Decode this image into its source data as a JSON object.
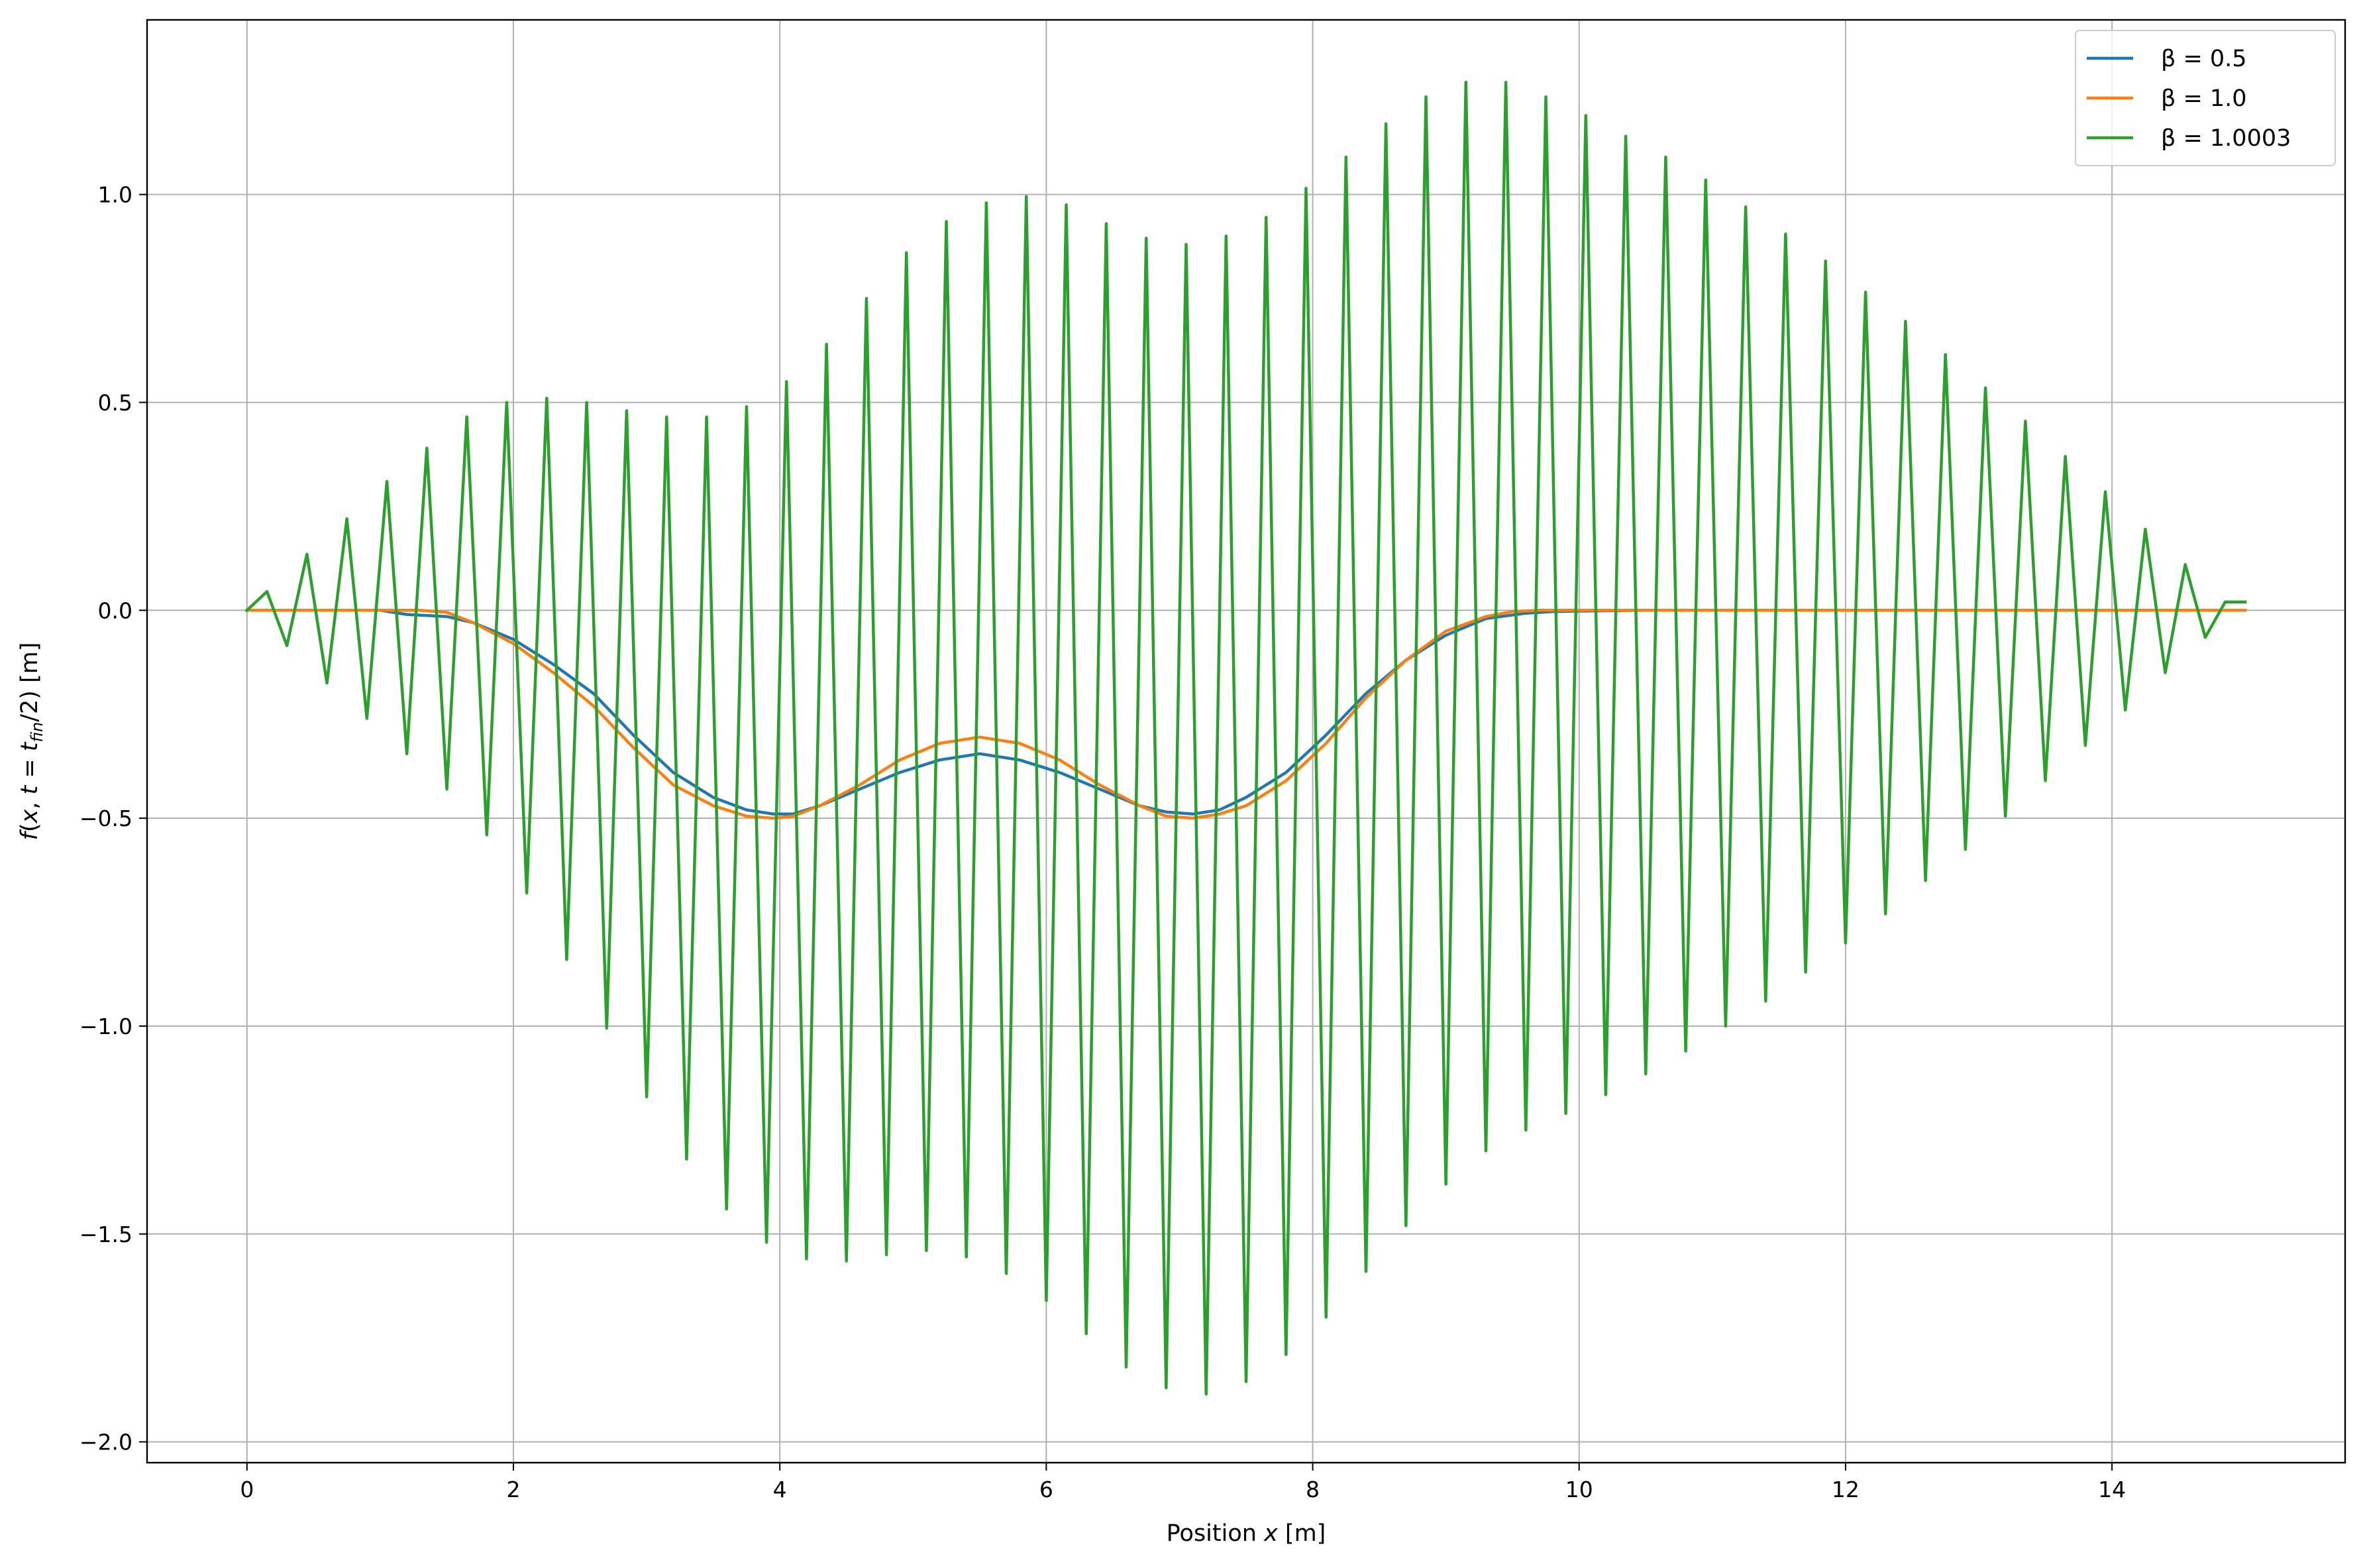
{
  "chart_data": {
    "type": "line",
    "title": "",
    "xlabel": {
      "prefix": "Position ",
      "var": "x",
      "suffix": " [m]"
    },
    "ylabel": {
      "f": "f",
      "open": "(",
      "x": "x",
      "comma": ", ",
      "t": "t",
      "eq": " = ",
      "t2": "t",
      "sub": "fin",
      "tail": "/2) [m]"
    },
    "xlim": [
      -0.75,
      15.75
    ],
    "ylim": [
      -2.05,
      1.42
    ],
    "xticks": [
      0,
      2,
      4,
      6,
      8,
      10,
      12,
      14
    ],
    "xtick_labels": [
      "0",
      "2",
      "4",
      "6",
      "8",
      "10",
      "12",
      "14"
    ],
    "yticks": [
      1.0,
      0.5,
      0.0,
      -0.5,
      -1.0,
      -1.5,
      -2.0
    ],
    "ytick_labels": [
      "1.0",
      "0.5",
      "0.0",
      "−0.5",
      "−1.0",
      "−1.5",
      "−2.0"
    ],
    "grid": true,
    "legend_position": "top-right",
    "series": [
      {
        "name": "β = 0.5",
        "color": "#1f77b4",
        "x": [
          0.0,
          0.5,
          1.0,
          1.2,
          1.5,
          1.7,
          2.0,
          2.3,
          2.6,
          2.9,
          3.2,
          3.5,
          3.75,
          3.95,
          4.1,
          4.3,
          4.6,
          4.9,
          5.2,
          5.5,
          5.8,
          6.1,
          6.4,
          6.7,
          6.9,
          7.1,
          7.3,
          7.5,
          7.8,
          8.1,
          8.4,
          8.7,
          9.0,
          9.3,
          9.6,
          9.8,
          10.0,
          10.5,
          11.0,
          12.0,
          13.0,
          14.0,
          15.0
        ],
        "y": [
          0.0,
          0.0,
          0.0,
          -0.01,
          -0.015,
          -0.03,
          -0.07,
          -0.13,
          -0.2,
          -0.3,
          -0.39,
          -0.45,
          -0.48,
          -0.49,
          -0.49,
          -0.47,
          -0.43,
          -0.39,
          -0.36,
          -0.345,
          -0.36,
          -0.39,
          -0.43,
          -0.47,
          -0.485,
          -0.49,
          -0.48,
          -0.45,
          -0.39,
          -0.3,
          -0.2,
          -0.12,
          -0.06,
          -0.02,
          -0.007,
          -0.003,
          -0.002,
          0.0,
          0.0,
          0.0,
          0.0,
          0.0,
          0.0
        ]
      },
      {
        "name": "β = 1.0",
        "color": "#ff7f0e",
        "x": [
          0.0,
          0.5,
          1.0,
          1.3,
          1.5,
          1.7,
          2.0,
          2.3,
          2.6,
          2.9,
          3.2,
          3.5,
          3.75,
          3.95,
          4.1,
          4.3,
          4.6,
          4.9,
          5.2,
          5.5,
          5.8,
          6.1,
          6.4,
          6.7,
          6.9,
          7.1,
          7.3,
          7.5,
          7.8,
          8.1,
          8.4,
          8.7,
          9.0,
          9.3,
          9.5,
          9.7,
          10.0,
          10.5,
          11.0,
          12.0,
          13.0,
          14.0,
          15.0
        ],
        "y": [
          0.0,
          0.0,
          0.0,
          0.0,
          -0.005,
          -0.03,
          -0.08,
          -0.15,
          -0.23,
          -0.33,
          -0.42,
          -0.47,
          -0.495,
          -0.5,
          -0.495,
          -0.47,
          -0.42,
          -0.36,
          -0.32,
          -0.305,
          -0.32,
          -0.36,
          -0.42,
          -0.47,
          -0.495,
          -0.5,
          -0.49,
          -0.47,
          -0.41,
          -0.32,
          -0.21,
          -0.12,
          -0.05,
          -0.015,
          -0.003,
          0.0,
          0.0,
          0.0,
          0.0,
          0.0,
          0.0,
          0.0,
          0.0
        ]
      },
      {
        "name": "β = 1.0003",
        "color": "#2ca02c",
        "x": [
          0.0,
          0.15,
          0.3,
          0.45,
          0.6,
          0.75,
          0.9,
          1.05,
          1.2,
          1.35,
          1.5,
          1.65,
          1.8,
          1.95,
          2.1,
          2.25,
          2.4,
          2.55,
          2.7,
          2.85,
          3.0,
          3.15,
          3.3,
          3.45,
          3.6,
          3.75,
          3.9,
          4.05,
          4.2,
          4.35,
          4.5,
          4.65,
          4.8,
          4.95,
          5.1,
          5.25,
          5.4,
          5.55,
          5.7,
          5.85,
          6.0,
          6.15,
          6.3,
          6.45,
          6.6,
          6.75,
          6.9,
          7.05,
          7.2,
          7.35,
          7.5,
          7.65,
          7.8,
          7.95,
          8.1,
          8.25,
          8.4,
          8.55,
          8.7,
          8.85,
          9.0,
          9.15,
          9.3,
          9.45,
          9.6,
          9.75,
          9.9,
          10.05,
          10.2,
          10.35,
          10.5,
          10.65,
          10.8,
          10.95,
          11.1,
          11.25,
          11.4,
          11.55,
          11.7,
          11.85,
          12.0,
          12.15,
          12.3,
          12.45,
          12.6,
          12.75,
          12.9,
          13.05,
          13.2,
          13.35,
          13.5,
          13.65,
          13.8,
          13.95,
          14.1,
          14.25,
          14.4,
          14.55,
          14.7,
          14.85,
          15.0
        ],
        "y": [
          0.0,
          0.045,
          -0.085,
          0.135,
          -0.175,
          0.22,
          -0.26,
          0.31,
          -0.345,
          0.39,
          -0.43,
          0.465,
          -0.54,
          0.5,
          -0.68,
          0.51,
          -0.84,
          0.5,
          -1.005,
          0.48,
          -1.17,
          0.465,
          -1.32,
          0.465,
          -1.44,
          0.49,
          -1.52,
          0.55,
          -1.56,
          0.64,
          -1.565,
          0.75,
          -1.55,
          0.86,
          -1.54,
          0.935,
          -1.555,
          0.98,
          -1.595,
          0.995,
          -1.66,
          0.975,
          -1.74,
          0.93,
          -1.82,
          0.895,
          -1.87,
          0.88,
          -1.885,
          0.9,
          -1.855,
          0.945,
          -1.79,
          1.015,
          -1.7,
          1.09,
          -1.59,
          1.17,
          -1.48,
          1.235,
          -1.38,
          1.27,
          -1.3,
          1.27,
          -1.25,
          1.235,
          -1.21,
          1.19,
          -1.165,
          1.14,
          -1.115,
          1.09,
          -1.06,
          1.035,
          -1.0,
          0.97,
          -0.94,
          0.905,
          -0.87,
          0.84,
          -0.8,
          0.765,
          -0.73,
          0.695,
          -0.65,
          0.615,
          -0.575,
          0.535,
          -0.495,
          0.455,
          -0.41,
          0.37,
          -0.325,
          0.285,
          -0.24,
          0.195,
          -0.15,
          0.11,
          -0.065,
          0.02,
          0.02
        ]
      }
    ]
  }
}
